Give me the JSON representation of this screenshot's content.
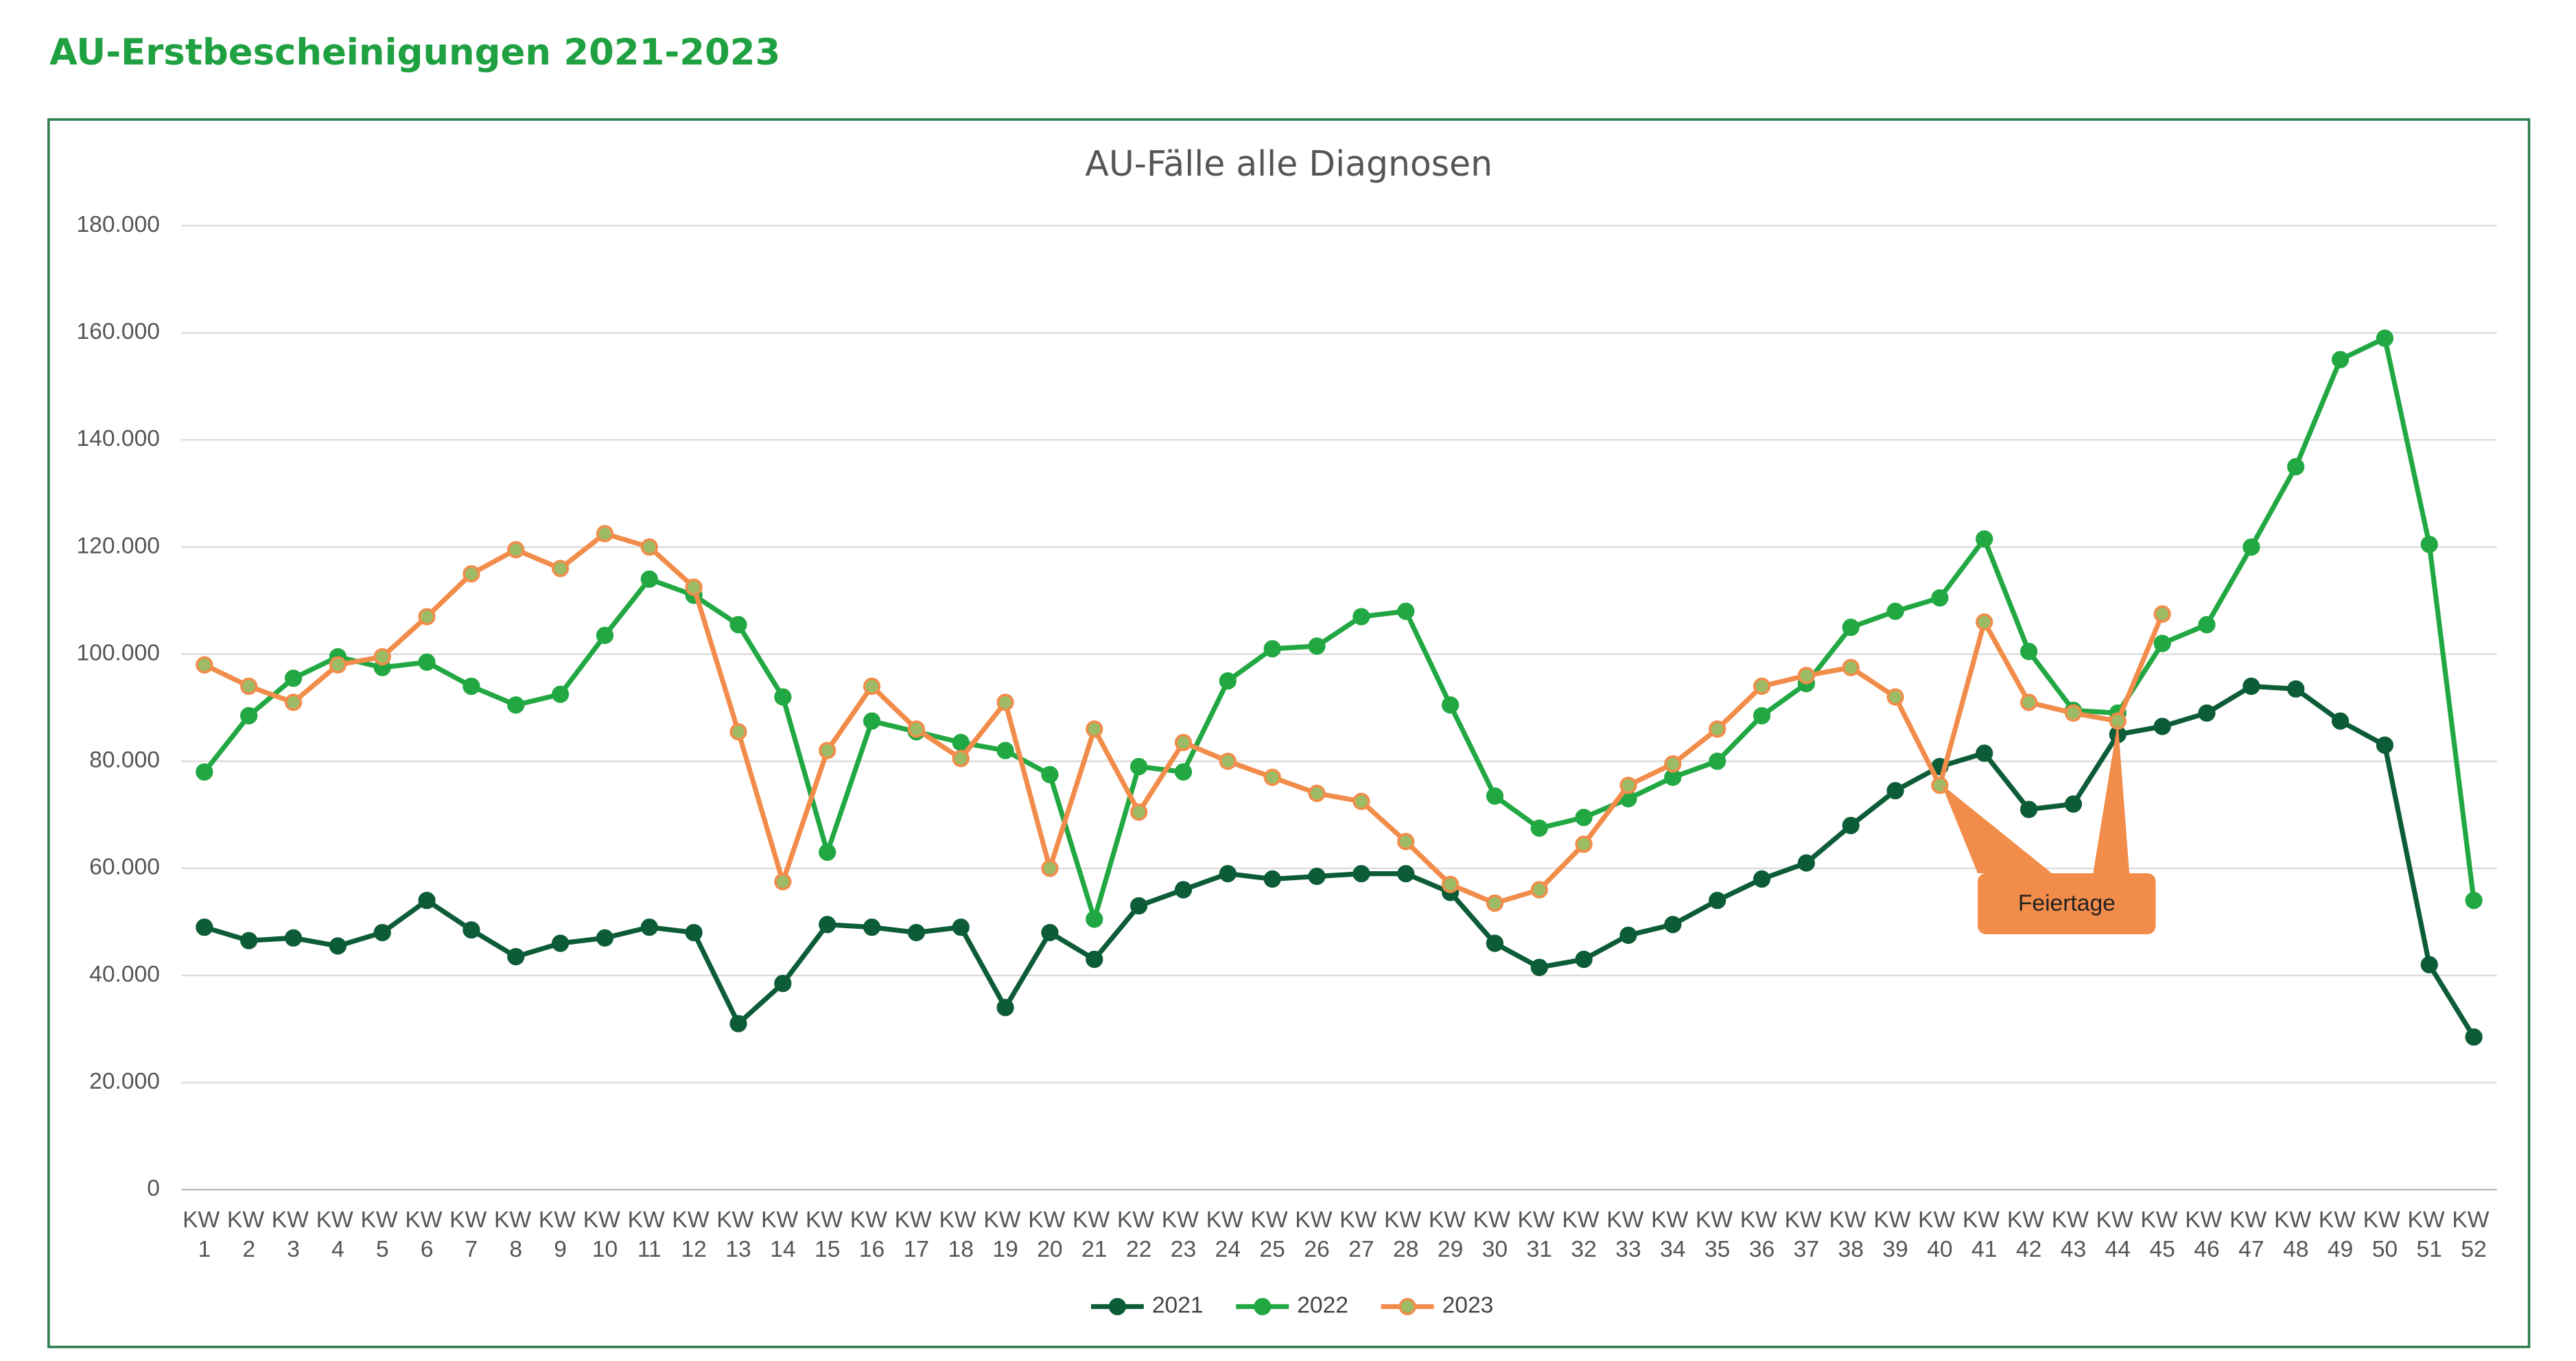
{
  "header": {
    "title": "AU-Erstbescheinigungen 2021-2023"
  },
  "chart_data": {
    "type": "line",
    "title": "AU-Fälle alle Diagnosen",
    "categories": [
      "KW 1",
      "KW 2",
      "KW 3",
      "KW 4",
      "KW 5",
      "KW 6",
      "KW 7",
      "KW 8",
      "KW 9",
      "KW 10",
      "KW 11",
      "KW 12",
      "KW 13",
      "KW 14",
      "KW 15",
      "KW 16",
      "KW 17",
      "KW 18",
      "KW 19",
      "KW 20",
      "KW 21",
      "KW 22",
      "KW 23",
      "KW 24",
      "KW 25",
      "KW 26",
      "KW 27",
      "KW 28",
      "KW 29",
      "KW 30",
      "KW 31",
      "KW 32",
      "KW 33",
      "KW 34",
      "KW 35",
      "KW 36",
      "KW 37",
      "KW 38",
      "KW 39",
      "KW 40",
      "KW 41",
      "KW 42",
      "KW 43",
      "KW 44",
      "KW 45",
      "KW 46",
      "KW 47",
      "KW 48",
      "KW 49",
      "KW 50",
      "KW 51",
      "KW 52"
    ],
    "series": [
      {
        "name": "2021",
        "color": "#0d5c38",
        "marker_color": "#0d5c38",
        "values": [
          49000,
          46500,
          47000,
          45500,
          48000,
          54000,
          48500,
          43500,
          46000,
          47000,
          49000,
          48000,
          31000,
          38500,
          49500,
          49000,
          48000,
          49000,
          34000,
          48000,
          43000,
          53000,
          56000,
          59000,
          58000,
          58500,
          59000,
          59000,
          55500,
          46000,
          41500,
          43000,
          47500,
          49500,
          54000,
          58000,
          61000,
          68000,
          74500,
          79000,
          81500,
          71000,
          72000,
          85000,
          86500,
          89000,
          94000,
          93500,
          87500,
          83000,
          42000,
          28500
        ]
      },
      {
        "name": "2022",
        "color": "#22a843",
        "marker_color": "#22a843",
        "values": [
          78000,
          88500,
          95500,
          99500,
          97500,
          98500,
          94000,
          90500,
          92500,
          103500,
          114000,
          111000,
          105500,
          92000,
          63000,
          87500,
          85500,
          83500,
          82000,
          77500,
          50500,
          79000,
          78000,
          95000,
          101000,
          101500,
          107000,
          108000,
          90500,
          73500,
          67500,
          69500,
          73000,
          77000,
          80000,
          88500,
          94500,
          105000,
          108000,
          110500,
          121500,
          100500,
          89500,
          89000,
          102000,
          105500,
          120000,
          135000,
          155000,
          159000,
          120500,
          54000
        ]
      },
      {
        "name": "2023",
        "color": "#f28c4a",
        "marker_color": "#9dbb64",
        "values": [
          98000,
          94000,
          91000,
          98000,
          99500,
          107000,
          115000,
          119500,
          116000,
          122500,
          120000,
          112500,
          85500,
          57500,
          82000,
          94000,
          86000,
          80500,
          91000,
          60000,
          86000,
          70500,
          83500,
          80000,
          77000,
          74000,
          72500,
          65000,
          57000,
          53500,
          56000,
          64500,
          75500,
          79500,
          86000,
          94000,
          96000,
          97500,
          92000,
          75500,
          106000,
          91000,
          89000,
          87500,
          107500,
          null,
          null,
          null,
          null,
          null,
          null,
          null
        ]
      }
    ],
    "ylim": [
      0,
      180000
    ],
    "yticks": [
      0,
      {
        "value": 20000,
        "label": "20.000"
      },
      {
        "value": 40000,
        "label": "40.000"
      },
      {
        "value": 60000,
        "label": "60.000"
      },
      {
        "value": 80000,
        "label": "80.000"
      },
      {
        "value": 100000,
        "label": "100.000"
      },
      {
        "value": 120000,
        "label": "120.000"
      },
      {
        "value": 140000,
        "label": "140.000"
      },
      {
        "value": 160000,
        "label": "160.000"
      },
      {
        "value": 180000,
        "label": "180.000"
      }
    ],
    "grid": true,
    "legend": "bottom",
    "annotations": [
      "Feiertage"
    ]
  }
}
